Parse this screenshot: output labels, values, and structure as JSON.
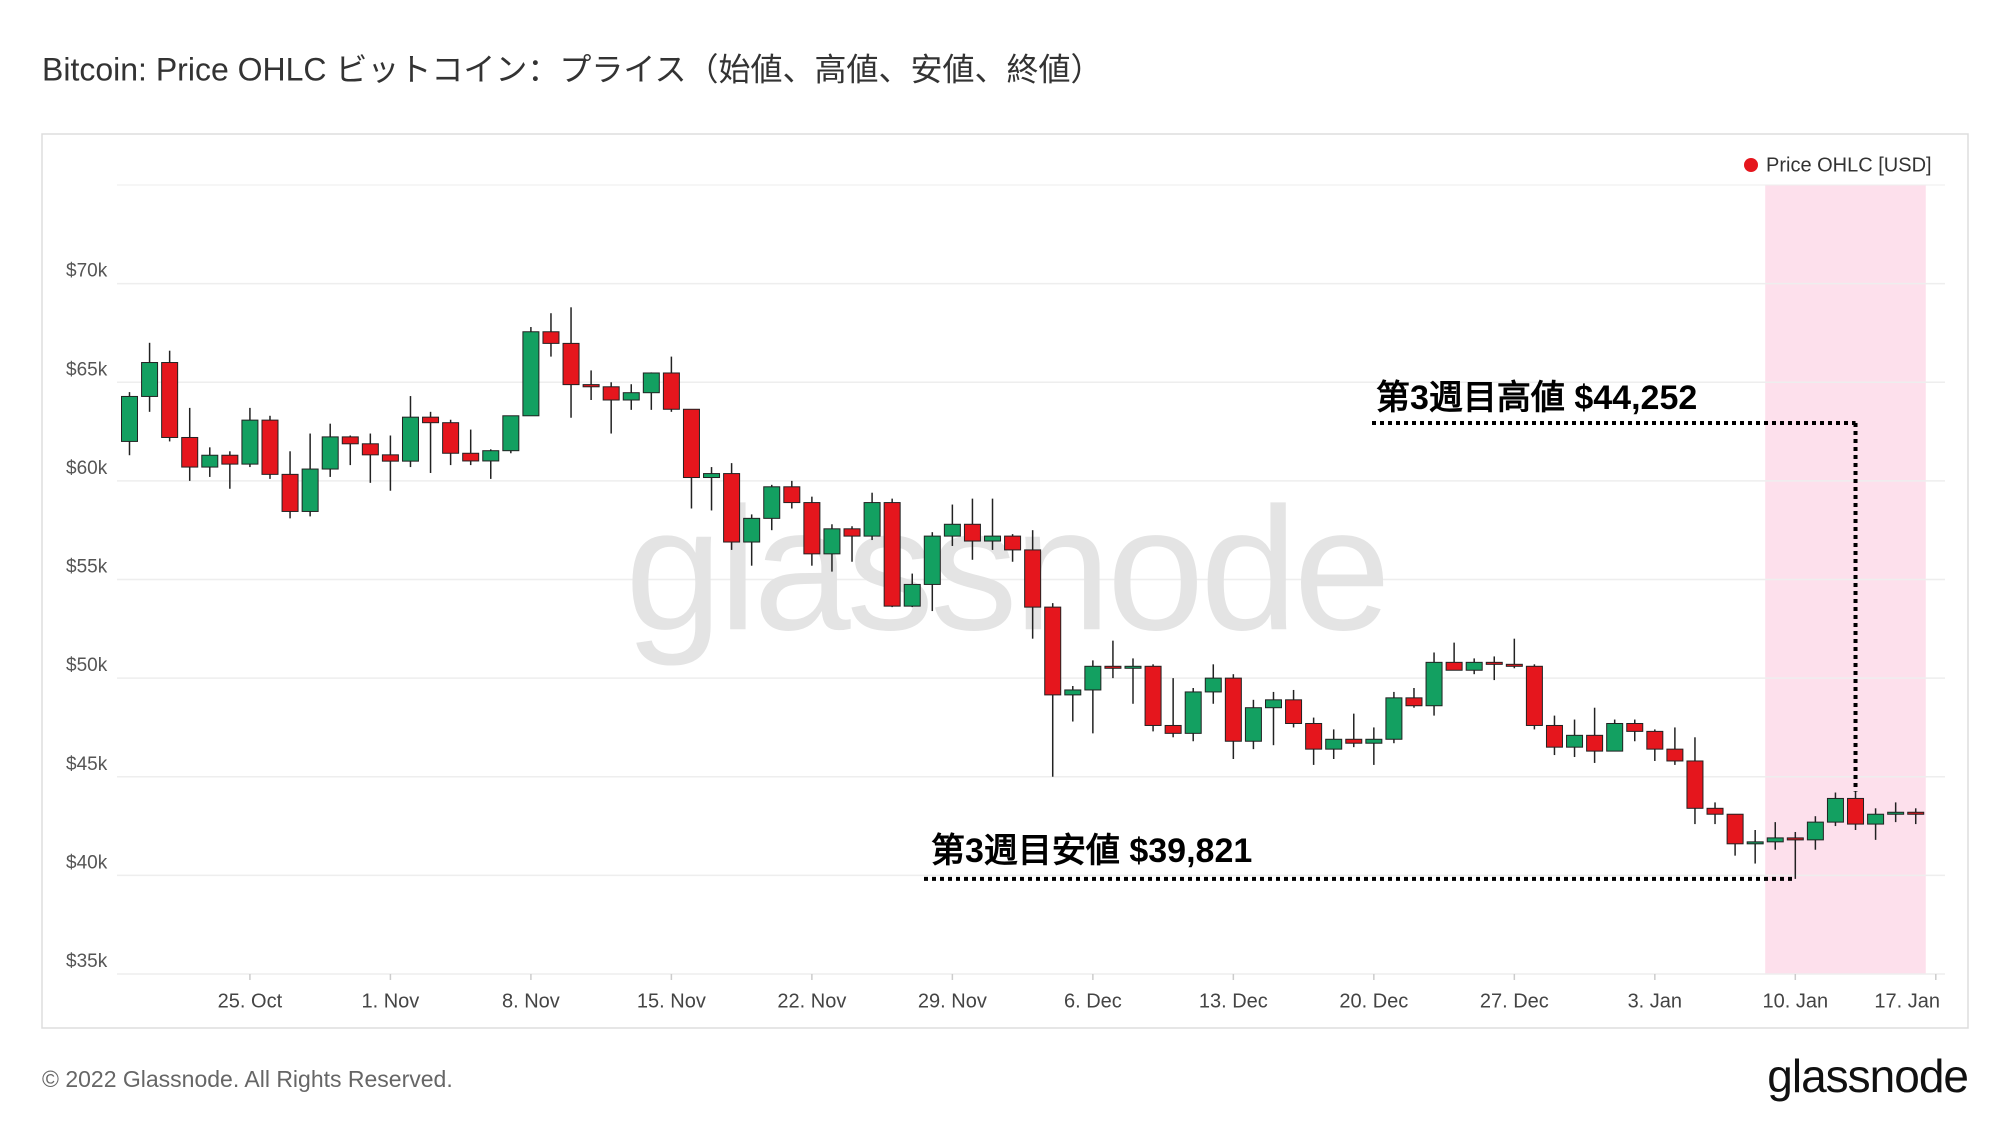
{
  "chart_data": {
    "type": "candlestick",
    "title": "Bitcoin: Price OHLC  ビットコイン：プライス（始値、高値、安値、終値）",
    "watermark": "glassnode",
    "footer": "© 2022 Glassnode. All Rights Reserved.",
    "logo": "glassnode",
    "up_color": "#13a061",
    "down_color": "#e5161d",
    "legend": "top-right",
    "grid": true,
    "ylim": [
      35000,
      75000
    ],
    "yticks": [
      {
        "value": 35000,
        "label": "$35k"
      },
      {
        "value": 40000,
        "label": "$40k"
      },
      {
        "value": 45000,
        "label": "$45k"
      },
      {
        "value": 50000,
        "label": "$50k"
      },
      {
        "value": 55000,
        "label": "$55k"
      },
      {
        "value": 60000,
        "label": "$60k"
      },
      {
        "value": 65000,
        "label": "$65k"
      },
      {
        "value": 70000,
        "label": "$70k"
      }
    ],
    "xticks": [
      {
        "value": "10-25",
        "label": "25. Oct"
      },
      {
        "value": "11-01",
        "label": "1. Nov"
      },
      {
        "value": "11-08",
        "label": "8. Nov"
      },
      {
        "value": "11-15",
        "label": "15. Nov"
      },
      {
        "value": "11-22",
        "label": "22. Nov"
      },
      {
        "value": "11-29",
        "label": "29. Nov"
      },
      {
        "value": "12-06",
        "label": "6. Dec"
      },
      {
        "value": "12-13",
        "label": "13. Dec"
      },
      {
        "value": "12-20",
        "label": "20. Dec"
      },
      {
        "value": "12-27",
        "label": "27. Dec"
      },
      {
        "value": "01-03",
        "label": "3. Jan"
      },
      {
        "value": "01-10",
        "label": "10. Jan"
      },
      {
        "value": "01-17",
        "label": "17. Jan"
      }
    ],
    "highlight": {
      "from": "01-09",
      "to": "01-16",
      "color": "#fde0ec"
    },
    "annotations": [
      {
        "text": "第3週目高値 $44,252",
        "value": 44252,
        "x": "01-13"
      },
      {
        "text": "第3週目安値 $39,821",
        "value": 39821,
        "x": "01-10"
      }
    ],
    "x": [
      "10-19",
      "10-20",
      "10-21",
      "10-22",
      "10-23",
      "10-24",
      "10-25",
      "10-26",
      "10-27",
      "10-28",
      "10-29",
      "10-30",
      "10-31",
      "11-01",
      "11-02",
      "11-03",
      "11-04",
      "11-05",
      "11-06",
      "11-07",
      "11-08",
      "11-09",
      "11-10",
      "11-11",
      "11-12",
      "11-13",
      "11-14",
      "11-15",
      "11-16",
      "11-17",
      "11-18",
      "11-19",
      "11-20",
      "11-21",
      "11-22",
      "11-23",
      "11-24",
      "11-25",
      "11-26",
      "11-27",
      "11-28",
      "11-29",
      "11-30",
      "12-01",
      "12-02",
      "12-03",
      "12-04",
      "12-05",
      "12-06",
      "12-07",
      "12-08",
      "12-09",
      "12-10",
      "12-11",
      "12-12",
      "12-13",
      "12-14",
      "12-15",
      "12-16",
      "12-17",
      "12-18",
      "12-19",
      "12-20",
      "12-21",
      "12-22",
      "12-23",
      "12-24",
      "12-25",
      "12-26",
      "12-27",
      "12-28",
      "12-29",
      "12-30",
      "12-31",
      "01-01",
      "01-02",
      "01-03",
      "01-04",
      "01-05",
      "01-06",
      "01-07",
      "01-08",
      "01-09",
      "01-10",
      "01-11",
      "01-12",
      "01-13",
      "01-14",
      "01-15",
      "01-16"
    ],
    "series": [
      {
        "name": "Price OHLC [USD]",
        "color": "#e5161d",
        "open": [
          62000,
          64280,
          66000,
          62200,
          60700,
          61300,
          60850,
          63080,
          60330,
          58450,
          60600,
          62230,
          61880,
          61320,
          61000,
          63230,
          62950,
          61400,
          61010,
          61530,
          63300,
          67560,
          66970,
          64880,
          64770,
          64100,
          64470,
          65470,
          63630,
          60170,
          60370,
          56900,
          58100,
          59700,
          58900,
          56300,
          57570,
          57200,
          58900,
          53650,
          54750,
          57200,
          57800,
          56950,
          57200,
          56500,
          53600,
          49150,
          49400,
          50600,
          50500,
          50600,
          47600,
          47200,
          49300,
          50000,
          46800,
          48500,
          48900,
          47700,
          46400,
          46900,
          46700,
          46900,
          49000,
          48600,
          50800,
          50400,
          50800,
          50700,
          50600,
          47600,
          46500,
          47100,
          46300,
          47700,
          47300,
          46400,
          45800,
          43400,
          43100,
          41600,
          41700,
          41900,
          41800,
          42700,
          43900,
          42600,
          43100,
          43200
        ],
        "high": [
          64500,
          67000,
          66600,
          63700,
          61700,
          61500,
          63700,
          63300,
          61500,
          62400,
          62900,
          62300,
          62400,
          62300,
          64300,
          63500,
          63100,
          62600,
          61600,
          63300,
          67800,
          68500,
          68800,
          65600,
          65000,
          64900,
          65500,
          66300,
          63630,
          60700,
          60900,
          58300,
          59800,
          60000,
          59200,
          57800,
          57700,
          59400,
          59100,
          55300,
          57400,
          58800,
          59100,
          59100,
          57300,
          57500,
          53800,
          49600,
          50900,
          51900,
          51000,
          50700,
          50000,
          49500,
          50700,
          50200,
          48900,
          49300,
          49400,
          48000,
          47400,
          48200,
          47500,
          49300,
          49500,
          51300,
          51800,
          51000,
          51100,
          52000,
          50700,
          48100,
          47900,
          48500,
          47900,
          47900,
          47400,
          47500,
          47000,
          43700,
          43100,
          42300,
          42700,
          42200,
          43000,
          44200,
          44252,
          43400,
          43700,
          43400
        ],
        "low": [
          61300,
          63500,
          62000,
          60000,
          60200,
          59600,
          60700,
          60100,
          58100,
          58200,
          60200,
          60800,
          59900,
          59500,
          60700,
          60400,
          60800,
          60800,
          60100,
          61400,
          63300,
          66300,
          63200,
          64100,
          62400,
          63600,
          63600,
          63500,
          58600,
          58500,
          56500,
          55700,
          57500,
          58600,
          55700,
          55400,
          55900,
          57000,
          53600,
          53600,
          53400,
          56700,
          56000,
          56500,
          55900,
          52000,
          45000,
          47800,
          47200,
          50000,
          48700,
          47300,
          47000,
          46800,
          48700,
          45900,
          46400,
          46600,
          47500,
          45600,
          45900,
          46500,
          45600,
          46700,
          48500,
          48100,
          50400,
          50200,
          49900,
          50500,
          47400,
          46100,
          46000,
          45700,
          46300,
          46800,
          45800,
          45600,
          42600,
          42600,
          41000,
          40600,
          41300,
          39821,
          41300,
          42500,
          42300,
          41800,
          42700,
          42600
        ],
        "close": [
          64280,
          66000,
          62200,
          60700,
          61300,
          60850,
          63080,
          60330,
          58450,
          60600,
          62230,
          61880,
          61320,
          61000,
          63230,
          62950,
          61400,
          61010,
          61530,
          63300,
          67560,
          66970,
          64880,
          64770,
          64100,
          64470,
          65470,
          63630,
          60170,
          60370,
          56900,
          58100,
          59700,
          58900,
          56300,
          57570,
          57200,
          58900,
          53650,
          54750,
          57200,
          57800,
          56950,
          57200,
          56500,
          53600,
          49150,
          49400,
          50600,
          50500,
          50600,
          47600,
          47200,
          49300,
          50000,
          46800,
          48500,
          48900,
          47700,
          46400,
          46900,
          46700,
          46900,
          49000,
          48600,
          50800,
          50400,
          50800,
          50700,
          50600,
          47600,
          46500,
          47100,
          46300,
          47700,
          47300,
          46400,
          45800,
          43400,
          43100,
          41600,
          41700,
          41900,
          41800,
          42700,
          43900,
          42600,
          43100,
          43200,
          43100
        ]
      }
    ]
  }
}
